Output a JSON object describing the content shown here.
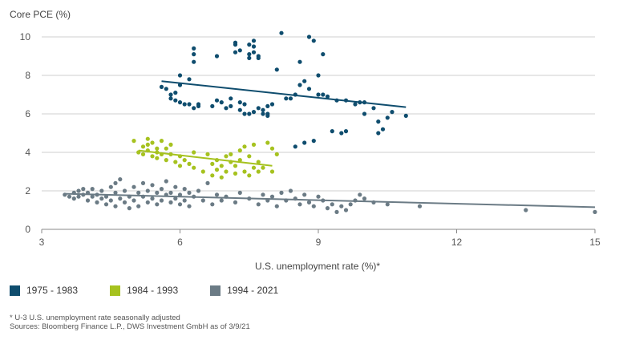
{
  "chart_data": {
    "type": "scatter",
    "ylabel": "Core PCE (%)",
    "xlabel": "U.S. unemployment rate (%)*",
    "xlim": [
      3,
      15
    ],
    "ylim": [
      0,
      10.5
    ],
    "xticks": [
      3,
      6,
      9,
      12,
      15
    ],
    "yticks": [
      0,
      2,
      4,
      6,
      8,
      10
    ],
    "grid": "horizontal",
    "legend_position": "bottom-left",
    "series": [
      {
        "name": "1975 - 1983",
        "color": "#0f4d6e",
        "trend": [
          [
            5.6,
            7.7
          ],
          [
            10.9,
            6.35
          ]
        ],
        "points": [
          [
            5.6,
            7.4
          ],
          [
            5.7,
            7.3
          ],
          [
            5.8,
            7.0
          ],
          [
            5.8,
            6.8
          ],
          [
            5.9,
            7.1
          ],
          [
            5.9,
            6.7
          ],
          [
            6.0,
            7.5
          ],
          [
            6.0,
            6.6
          ],
          [
            6.0,
            8.0
          ],
          [
            6.1,
            6.5
          ],
          [
            6.2,
            6.5
          ],
          [
            6.2,
            7.8
          ],
          [
            6.3,
            6.3
          ],
          [
            6.3,
            8.7
          ],
          [
            6.3,
            9.1
          ],
          [
            6.3,
            9.4
          ],
          [
            6.4,
            6.4
          ],
          [
            6.4,
            6.5
          ],
          [
            6.7,
            6.4
          ],
          [
            6.8,
            6.7
          ],
          [
            6.8,
            9.0
          ],
          [
            6.9,
            6.6
          ],
          [
            7.0,
            6.3
          ],
          [
            7.1,
            6.4
          ],
          [
            7.1,
            6.8
          ],
          [
            7.2,
            9.2
          ],
          [
            7.2,
            9.6
          ],
          [
            7.2,
            9.7
          ],
          [
            7.3,
            9.3
          ],
          [
            7.3,
            6.2
          ],
          [
            7.3,
            6.6
          ],
          [
            7.4,
            6.0
          ],
          [
            7.4,
            6.5
          ],
          [
            7.5,
            6.0
          ],
          [
            7.5,
            8.9
          ],
          [
            7.5,
            9.1
          ],
          [
            7.5,
            9.6
          ],
          [
            7.6,
            9.8
          ],
          [
            7.6,
            9.5
          ],
          [
            7.6,
            9.2
          ],
          [
            7.6,
            6.1
          ],
          [
            7.7,
            6.3
          ],
          [
            7.7,
            8.9
          ],
          [
            7.7,
            9.0
          ],
          [
            7.8,
            6.0
          ],
          [
            7.8,
            6.2
          ],
          [
            7.9,
            5.9
          ],
          [
            7.9,
            6.0
          ],
          [
            7.9,
            6.4
          ],
          [
            8.0,
            6.5
          ],
          [
            8.1,
            8.3
          ],
          [
            8.2,
            10.2
          ],
          [
            8.3,
            6.8
          ],
          [
            8.4,
            6.8
          ],
          [
            8.5,
            7.0
          ],
          [
            8.5,
            4.3
          ],
          [
            8.6,
            7.5
          ],
          [
            8.6,
            8.7
          ],
          [
            8.7,
            7.7
          ],
          [
            8.7,
            4.5
          ],
          [
            8.8,
            10.0
          ],
          [
            8.8,
            7.3
          ],
          [
            8.9,
            9.8
          ],
          [
            8.9,
            4.6
          ],
          [
            9.0,
            8.0
          ],
          [
            9.0,
            7.0
          ],
          [
            9.1,
            7.0
          ],
          [
            9.1,
            9.1
          ],
          [
            9.2,
            6.9
          ],
          [
            9.3,
            5.1
          ],
          [
            9.4,
            6.7
          ],
          [
            9.5,
            5.0
          ],
          [
            9.6,
            6.7
          ],
          [
            9.6,
            5.1
          ],
          [
            9.8,
            6.5
          ],
          [
            9.9,
            6.6
          ],
          [
            10.0,
            6.0
          ],
          [
            10.0,
            6.6
          ],
          [
            10.2,
            6.3
          ],
          [
            10.3,
            5.0
          ],
          [
            10.3,
            5.6
          ],
          [
            10.4,
            5.2
          ],
          [
            10.5,
            5.8
          ],
          [
            10.6,
            6.1
          ],
          [
            10.9,
            5.9
          ]
        ]
      },
      {
        "name": "1984 - 1993",
        "color": "#a6c21f",
        "trend": [
          [
            5.1,
            4.1
          ],
          [
            8.0,
            3.3
          ]
        ],
        "points": [
          [
            5.0,
            4.6
          ],
          [
            5.1,
            4.0
          ],
          [
            5.2,
            4.3
          ],
          [
            5.2,
            3.9
          ],
          [
            5.3,
            4.7
          ],
          [
            5.3,
            4.4
          ],
          [
            5.3,
            4.1
          ],
          [
            5.4,
            4.5
          ],
          [
            5.4,
            3.8
          ],
          [
            5.5,
            4.2
          ],
          [
            5.5,
            4.0
          ],
          [
            5.5,
            3.7
          ],
          [
            5.6,
            4.6
          ],
          [
            5.6,
            3.9
          ],
          [
            5.7,
            4.2
          ],
          [
            5.7,
            3.6
          ],
          [
            5.8,
            4.4
          ],
          [
            5.8,
            3.9
          ],
          [
            5.9,
            3.5
          ],
          [
            6.0,
            3.8
          ],
          [
            6.0,
            3.3
          ],
          [
            6.1,
            3.6
          ],
          [
            6.2,
            3.4
          ],
          [
            6.3,
            3.2
          ],
          [
            6.3,
            4.0
          ],
          [
            6.5,
            3.0
          ],
          [
            6.6,
            3.9
          ],
          [
            6.7,
            2.8
          ],
          [
            6.7,
            3.4
          ],
          [
            6.8,
            3.6
          ],
          [
            6.8,
            3.1
          ],
          [
            6.9,
            3.3
          ],
          [
            6.9,
            2.7
          ],
          [
            7.0,
            3.8
          ],
          [
            7.0,
            3.0
          ],
          [
            7.1,
            3.5
          ],
          [
            7.1,
            3.9
          ],
          [
            7.2,
            2.9
          ],
          [
            7.2,
            3.3
          ],
          [
            7.3,
            4.1
          ],
          [
            7.3,
            3.6
          ],
          [
            7.4,
            3.0
          ],
          [
            7.4,
            4.3
          ],
          [
            7.5,
            3.8
          ],
          [
            7.5,
            2.8
          ],
          [
            7.6,
            3.2
          ],
          [
            7.6,
            4.4
          ],
          [
            7.7,
            3.5
          ],
          [
            7.7,
            3.0
          ],
          [
            7.8,
            3.2
          ],
          [
            7.9,
            4.5
          ],
          [
            8.0,
            4.2
          ],
          [
            8.0,
            3.0
          ],
          [
            8.1,
            3.9
          ]
        ]
      },
      {
        "name": "1994 - 2021",
        "color": "#6b7b85",
        "trend": [
          [
            3.5,
            1.85
          ],
          [
            15.0,
            1.15
          ]
        ],
        "points": [
          [
            3.5,
            1.8
          ],
          [
            3.6,
            1.7
          ],
          [
            3.7,
            1.9
          ],
          [
            3.7,
            1.6
          ],
          [
            3.8,
            2.0
          ],
          [
            3.8,
            1.7
          ],
          [
            3.9,
            1.8
          ],
          [
            3.9,
            2.1
          ],
          [
            4.0,
            1.5
          ],
          [
            4.0,
            1.9
          ],
          [
            4.1,
            1.7
          ],
          [
            4.1,
            2.1
          ],
          [
            4.2,
            1.4
          ],
          [
            4.2,
            1.8
          ],
          [
            4.3,
            1.6
          ],
          [
            4.3,
            2.0
          ],
          [
            4.4,
            1.3
          ],
          [
            4.4,
            1.7
          ],
          [
            4.5,
            1.5
          ],
          [
            4.5,
            2.2
          ],
          [
            4.6,
            1.2
          ],
          [
            4.6,
            1.9
          ],
          [
            4.6,
            2.4
          ],
          [
            4.7,
            1.6
          ],
          [
            4.7,
            2.6
          ],
          [
            4.8,
            1.4
          ],
          [
            4.8,
            2.0
          ],
          [
            4.9,
            1.1
          ],
          [
            4.9,
            1.7
          ],
          [
            5.0,
            2.2
          ],
          [
            5.0,
            1.5
          ],
          [
            5.1,
            1.9
          ],
          [
            5.1,
            1.2
          ],
          [
            5.2,
            1.7
          ],
          [
            5.2,
            2.4
          ],
          [
            5.3,
            1.4
          ],
          [
            5.3,
            2.0
          ],
          [
            5.4,
            1.6
          ],
          [
            5.4,
            2.3
          ],
          [
            5.5,
            1.3
          ],
          [
            5.5,
            1.9
          ],
          [
            5.6,
            1.5
          ],
          [
            5.6,
            2.1
          ],
          [
            5.7,
            1.8
          ],
          [
            5.7,
            2.5
          ],
          [
            5.8,
            1.4
          ],
          [
            5.8,
            1.9
          ],
          [
            5.9,
            1.6
          ],
          [
            5.9,
            2.2
          ],
          [
            6.0,
            1.3
          ],
          [
            6.0,
            1.8
          ],
          [
            6.1,
            2.1
          ],
          [
            6.1,
            1.5
          ],
          [
            6.2,
            1.9
          ],
          [
            6.2,
            1.2
          ],
          [
            6.3,
            1.7
          ],
          [
            6.4,
            2.0
          ],
          [
            6.5,
            1.5
          ],
          [
            6.6,
            2.4
          ],
          [
            6.7,
            1.3
          ],
          [
            6.8,
            1.8
          ],
          [
            6.9,
            1.5
          ],
          [
            7.0,
            1.7
          ],
          [
            7.2,
            1.4
          ],
          [
            7.3,
            1.9
          ],
          [
            7.5,
            1.6
          ],
          [
            7.7,
            1.3
          ],
          [
            7.8,
            1.8
          ],
          [
            7.9,
            1.5
          ],
          [
            8.0,
            1.7
          ],
          [
            8.1,
            1.2
          ],
          [
            8.2,
            1.9
          ],
          [
            8.3,
            1.5
          ],
          [
            8.4,
            2.0
          ],
          [
            8.5,
            1.6
          ],
          [
            8.6,
            1.3
          ],
          [
            8.7,
            1.8
          ],
          [
            8.8,
            1.4
          ],
          [
            8.9,
            1.2
          ],
          [
            9.0,
            1.7
          ],
          [
            9.1,
            1.5
          ],
          [
            9.2,
            1.1
          ],
          [
            9.3,
            1.3
          ],
          [
            9.4,
            0.9
          ],
          [
            9.5,
            1.2
          ],
          [
            9.6,
            1.0
          ],
          [
            9.7,
            1.3
          ],
          [
            9.8,
            1.5
          ],
          [
            9.9,
            1.8
          ],
          [
            10.0,
            1.6
          ],
          [
            10.2,
            1.4
          ],
          [
            10.5,
            1.3
          ],
          [
            11.2,
            1.2
          ],
          [
            13.5,
            1.0
          ],
          [
            15.0,
            0.9
          ]
        ]
      }
    ]
  },
  "footnotes": {
    "line1": "* U-3 U.S. unemployment rate seasonally adjusted",
    "line2": "Sources: Bloomberg Finance L.P., DWS Investment GmbH as of 3/9/21"
  }
}
